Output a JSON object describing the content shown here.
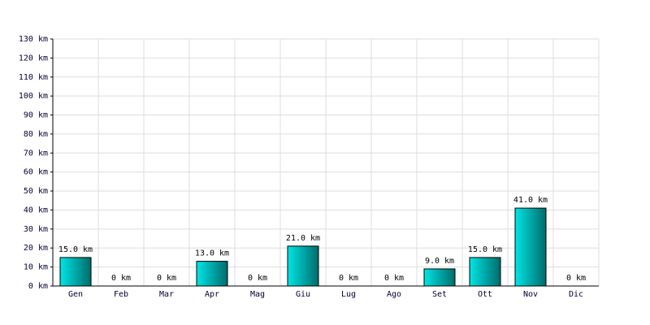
{
  "chart_data": {
    "type": "bar",
    "categories": [
      "Gen",
      "Feb",
      "Mar",
      "Apr",
      "Mag",
      "Giu",
      "Lug",
      "Ago",
      "Set",
      "Ott",
      "Nov",
      "Dic"
    ],
    "values": [
      15,
      0,
      0,
      13,
      0,
      21,
      0,
      0,
      9,
      15,
      41,
      0
    ],
    "value_labels": [
      "15.0 km",
      "0 km",
      "0 km",
      "13.0 km",
      "0 km",
      "21.0 km",
      "0 km",
      "0 km",
      "9.0 km",
      "15.0 km",
      "41.0 km",
      "0 km"
    ],
    "color": "#00e5e5",
    "ylim": [
      0,
      130
    ],
    "yticks": [
      {
        "value": 0,
        "label": "0 km"
      },
      {
        "value": 10,
        "label": "10 km"
      },
      {
        "value": 20,
        "label": "20 km"
      },
      {
        "value": 30,
        "label": "30 km"
      },
      {
        "value": 40,
        "label": "40 km"
      },
      {
        "value": 50,
        "label": "50 km"
      },
      {
        "value": 60,
        "label": "60 km"
      },
      {
        "value": 70,
        "label": "70 km"
      },
      {
        "value": 80,
        "label": "80 km"
      },
      {
        "value": 90,
        "label": "90 km"
      },
      {
        "value": 100,
        "label": "100 km"
      },
      {
        "value": 110,
        "label": "110 km"
      },
      {
        "value": 120,
        "label": "120 km"
      },
      {
        "value": 130,
        "label": "130 km"
      }
    ],
    "grid": true
  }
}
